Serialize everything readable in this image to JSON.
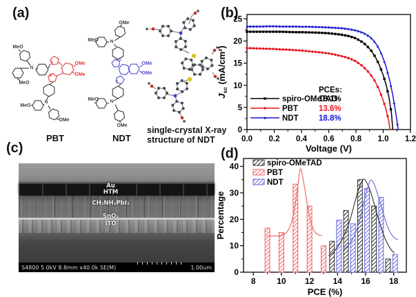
{
  "panels": {
    "a": {
      "label": "(a)",
      "meo_label": "MeO",
      "ome_label": "OMe",
      "nitrogen_label": "N",
      "sulfur_label": "S",
      "molecule1_name": "PBT",
      "molecule2_name": "NDT",
      "molecule3_caption_line1": "single-crystal X-ray",
      "molecule3_caption_line2": "structure of NDT"
    },
    "b": {
      "label": "(b)"
    },
    "c": {
      "label": "(c)",
      "layer_labels": [
        "Au",
        "HTM",
        "CH₃NH₃PbI₃",
        "SnO₂",
        "ITO"
      ],
      "status_bar": "S4800 5.0kV 8.8mm x40.0k SE(M)",
      "scale_label": "1.00um"
    },
    "d": {
      "label": "(d)"
    }
  },
  "chart_data": [
    {
      "panel": "b",
      "type": "line",
      "title": "",
      "xlabel": "Voltage (V)",
      "ylabel_main": "J",
      "ylabel_sub": "sc",
      "ylabel_rest": " (mA/cm²)",
      "xlim": [
        0,
        1.2
      ],
      "ylim": [
        0,
        26
      ],
      "xticks": [
        0,
        0.2,
        0.4,
        0.6,
        0.8,
        1.0,
        1.2
      ],
      "xtick_labels": [
        "0.0",
        "0.2",
        "0.4",
        "0.6",
        "0.8",
        "1.0",
        "1.2"
      ],
      "xminor": [
        0.1,
        0.3,
        0.5,
        0.7,
        0.9,
        1.1
      ],
      "yticks": [
        0,
        5,
        10,
        15,
        20,
        25
      ],
      "yminor": [
        2.5,
        7.5,
        12.5,
        17.5,
        22.5
      ],
      "grid": false,
      "legend_position": "lower-left-inside",
      "legend_header": "PCEs:",
      "series": [
        {
          "name": "spiro-OMeTAD",
          "pce": "18.1%",
          "color": "#000000",
          "marker": "square",
          "x": [
            0,
            0.05,
            0.1,
            0.15,
            0.2,
            0.25,
            0.3,
            0.35,
            0.4,
            0.45,
            0.5,
            0.55,
            0.6,
            0.65,
            0.7,
            0.75,
            0.8,
            0.85,
            0.88,
            0.91,
            0.94,
            0.97,
            1.0,
            1.02,
            1.04,
            1.06,
            1.07
          ],
          "y": [
            22.1,
            22.1,
            22.1,
            22.1,
            22.1,
            22.1,
            22.05,
            22.0,
            22.0,
            21.95,
            21.9,
            21.85,
            21.75,
            21.6,
            21.4,
            21.1,
            20.6,
            19.7,
            18.9,
            17.9,
            16.5,
            14.7,
            12.3,
            10.2,
            7.6,
            3.8,
            0
          ]
        },
        {
          "name": "PBT",
          "pce": "13.6%",
          "color": "#e81320",
          "marker": "circle",
          "x": [
            0,
            0.05,
            0.1,
            0.15,
            0.2,
            0.25,
            0.3,
            0.35,
            0.4,
            0.45,
            0.5,
            0.55,
            0.6,
            0.65,
            0.7,
            0.75,
            0.8,
            0.85,
            0.88,
            0.91,
            0.94,
            0.97,
            1.0,
            1.02,
            1.04,
            1.05
          ],
          "y": [
            18.4,
            18.35,
            18.3,
            18.25,
            18.2,
            18.1,
            18.05,
            17.95,
            17.85,
            17.7,
            17.55,
            17.4,
            17.2,
            16.9,
            16.55,
            16.1,
            15.4,
            14.3,
            13.4,
            12.3,
            10.9,
            9.0,
            6.6,
            4.6,
            2.0,
            0
          ]
        },
        {
          "name": "NDT",
          "pce": "18.8%",
          "color": "#1616d0",
          "marker": "triangle",
          "x": [
            0,
            0.05,
            0.1,
            0.15,
            0.2,
            0.25,
            0.3,
            0.35,
            0.4,
            0.45,
            0.5,
            0.55,
            0.6,
            0.65,
            0.7,
            0.75,
            0.8,
            0.85,
            0.9,
            0.93,
            0.96,
            0.99,
            1.02,
            1.05,
            1.07,
            1.09,
            1.11
          ],
          "y": [
            23.3,
            23.3,
            23.3,
            23.35,
            23.35,
            23.3,
            23.3,
            23.3,
            23.25,
            23.25,
            23.2,
            23.15,
            23.1,
            23.0,
            22.9,
            22.7,
            22.4,
            21.9,
            21.0,
            20.1,
            18.8,
            16.9,
            14.3,
            10.8,
            7.8,
            4.2,
            0
          ]
        }
      ]
    },
    {
      "panel": "d",
      "type": "bar",
      "title": "",
      "xlabel": "PCE (%)",
      "ylabel": "Percentage",
      "xlim": [
        7.3,
        18.9
      ],
      "ylim": [
        0,
        43
      ],
      "xticks": [
        8,
        10,
        12,
        14,
        16,
        18
      ],
      "xminor": [
        9,
        11,
        13,
        15,
        17
      ],
      "yticks": [
        0,
        10,
        20,
        30,
        40
      ],
      "yminor": [
        5,
        15,
        25,
        35
      ],
      "grid": false,
      "legend_position": "top-left-inside",
      "bar_width": 0.34,
      "series": [
        {
          "name": "spiro-OMeTAD",
          "color": "#2d2d2d",
          "centers": [
            13.6,
            14.6,
            15.6,
            16.6,
            17.6
          ],
          "values": [
            11.7,
            23.3,
            35,
            25,
            5
          ],
          "fit_x": [
            13.35,
            13.7,
            14.0,
            14.3,
            14.6,
            14.9,
            15.2,
            15.45,
            15.7,
            15.85,
            16.0,
            16.3,
            16.6,
            16.9,
            17.2,
            17.5,
            17.8,
            18.05
          ],
          "fit_y": [
            6.3,
            7.6,
            9.6,
            12.2,
            15.6,
            20.0,
            25.8,
            30.5,
            34.0,
            35.2,
            34.6,
            31.2,
            26.0,
            20.4,
            15.4,
            11.4,
            8.6,
            7.2
          ]
        },
        {
          "name": "PBT",
          "color": "#f06060",
          "centers": [
            9,
            10,
            11,
            12,
            13
          ],
          "values": [
            16.7,
            15,
            33.3,
            25,
            10
          ],
          "fit_x": [
            8.95,
            9.3,
            9.6,
            9.9,
            10.2,
            10.45,
            10.7,
            10.95,
            11.15,
            11.35,
            11.55,
            11.8,
            12.05,
            12.3,
            12.6,
            12.9
          ],
          "fit_y": [
            13.7,
            13.7,
            13.7,
            13.8,
            14.3,
            15.6,
            18.6,
            24.5,
            32.0,
            39.0,
            35.0,
            27.0,
            20.0,
            16.0,
            14.2,
            13.8
          ]
        },
        {
          "name": "NDT",
          "color": "#6868e0",
          "centers": [
            14.1,
            15.1,
            16.1,
            17.1,
            18.1
          ],
          "values": [
            19.7,
            18.3,
            31.7,
            28.3,
            6.7
          ],
          "fit_x": [
            14.45,
            14.8,
            15.1,
            15.4,
            15.7,
            16.0,
            16.2,
            16.35,
            16.55,
            16.8,
            17.1,
            17.4,
            17.7,
            18.0,
            18.3
          ],
          "fit_y": [
            8.8,
            10.4,
            12.8,
            16.6,
            22.4,
            29.2,
            33.0,
            34.8,
            34.0,
            30.4,
            25.2,
            19.8,
            15.6,
            13.2,
            12.3
          ]
        }
      ]
    }
  ]
}
